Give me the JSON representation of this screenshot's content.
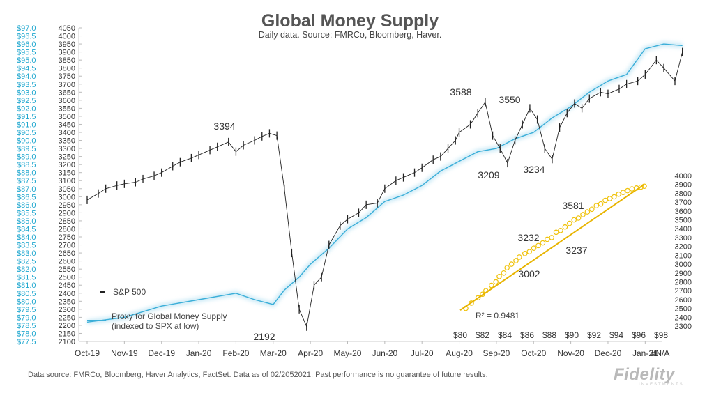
{
  "chart_data": [
    {
      "type": "line",
      "title": "Global Money Supply",
      "subtitle": "Daily data.  Source: FMRCo, Bloomberg, Haver.",
      "x_tick_labels": [
        "Oct-19",
        "Nov-19",
        "Dec-19",
        "Jan-20",
        "Feb-20",
        "Mar-20",
        "Apr-20",
        "May-20",
        "Jun-20",
        "Jul-20",
        "Aug-20",
        "Sep-20",
        "Oct-20",
        "Nov-20",
        "Dec-20",
        "Jan-21"
      ],
      "y_left_ticks": [
        "$97.0",
        "$96.5",
        "$96.0",
        "$95.5",
        "$95.0",
        "$94.5",
        "$94.0",
        "$93.5",
        "$93.0",
        "$92.5",
        "$92.0",
        "$91.5",
        "$91.0",
        "$90.5",
        "$90.0",
        "$89.5",
        "$89.0",
        "$88.5",
        "$88.0",
        "$87.5",
        "$87.0",
        "$86.5",
        "$86.0",
        "$85.5",
        "$85.0",
        "$84.5",
        "$84.0",
        "$83.5",
        "$83.0",
        "$82.5",
        "$82.0",
        "$81.5",
        "$81.0",
        "$80.5",
        "$80.0",
        "$79.5",
        "$79.0",
        "$78.5",
        "$78.0",
        "$77.5"
      ],
      "ylim": [
        2100,
        4050
      ],
      "series": [
        {
          "name": "S&P 500",
          "color": "#222222",
          "x": [
            0,
            0.3,
            0.5,
            0.8,
            1,
            1.3,
            1.5,
            1.8,
            2,
            2.3,
            2.5,
            2.8,
            3,
            3.3,
            3.5,
            3.8,
            4,
            4.2,
            4.5,
            4.7,
            4.9,
            5.1,
            5.3,
            5.5,
            5.7,
            5.9,
            6.1,
            6.3,
            6.5,
            6.8,
            7,
            7.3,
            7.5,
            7.8,
            8,
            8.3,
            8.5,
            8.8,
            9,
            9.3,
            9.5,
            9.7,
            9.9,
            10,
            10.3,
            10.5,
            10.7,
            10.9,
            11.1,
            11.3,
            11.5,
            11.7,
            11.9,
            12.1,
            12.3,
            12.5,
            12.7,
            12.9,
            13.1,
            13.3,
            13.5,
            13.8,
            14,
            14.3,
            14.5,
            14.8,
            15,
            15.3,
            15.5,
            15.8,
            16
          ],
          "y": [
            2980,
            3020,
            3050,
            3070,
            3080,
            3090,
            3110,
            3130,
            3150,
            3190,
            3215,
            3240,
            3260,
            3290,
            3310,
            3340,
            3280,
            3320,
            3350,
            3375,
            3394,
            3380,
            3050,
            2650,
            2300,
            2192,
            2450,
            2500,
            2700,
            2820,
            2860,
            2900,
            2950,
            2960,
            3050,
            3100,
            3120,
            3150,
            3180,
            3230,
            3250,
            3300,
            3350,
            3400,
            3450,
            3520,
            3588,
            3380,
            3300,
            3209,
            3350,
            3450,
            3550,
            3480,
            3300,
            3234,
            3430,
            3520,
            3580,
            3550,
            3610,
            3650,
            3640,
            3670,
            3700,
            3720,
            3760,
            3850,
            3800,
            3720,
            3900
          ]
        },
        {
          "name": "Proxy for Global Money Supply (indexed to SPX at low)",
          "color": "#3aaed8",
          "x": [
            0,
            1,
            2,
            3,
            4,
            4.5,
            5,
            5.3,
            5.7,
            6,
            6.5,
            7,
            7.5,
            8,
            8.5,
            9,
            9.5,
            10,
            10.5,
            11,
            11.5,
            12,
            12.5,
            13,
            13.5,
            14,
            14.5,
            15,
            15.5,
            16
          ],
          "y": [
            2220,
            2250,
            2320,
            2360,
            2400,
            2360,
            2330,
            2420,
            2500,
            2580,
            2680,
            2800,
            2870,
            2970,
            3010,
            3070,
            3160,
            3220,
            3280,
            3300,
            3360,
            3400,
            3490,
            3560,
            3650,
            3720,
            3760,
            3920,
            3950,
            3940
          ]
        }
      ],
      "annotations": [
        "3394",
        "2192",
        "3588",
        "3550",
        "3209",
        "3234"
      ]
    },
    {
      "type": "scatter",
      "x_tick_labels": [
        "$80",
        "$82",
        "$84",
        "$86",
        "$88",
        "$90",
        "$92",
        "$94",
        "$96",
        "$98"
      ],
      "y_ticks": [
        "4000",
        "3900",
        "3800",
        "3700",
        "3600",
        "3500",
        "3400",
        "3300",
        "3200",
        "3100",
        "3000",
        "2900",
        "2800",
        "2700",
        "2600",
        "2500",
        "2400",
        "2300"
      ],
      "xlim": [
        80,
        98
      ],
      "ylim": [
        2300,
        4000
      ],
      "points_x": [
        80.5,
        81,
        81.6,
        82,
        82.3,
        82.8,
        83.2,
        83.5,
        83.9,
        84.2,
        84.6,
        85,
        85.3,
        85.8,
        86.2,
        86.6,
        87,
        87.4,
        87.8,
        88.2,
        88.6,
        89,
        89.4,
        89.8,
        90.2,
        90.6,
        91,
        91.4,
        91.8,
        92.2,
        92.6,
        93,
        93.4,
        93.8,
        94.2,
        94.6,
        95,
        95.4,
        95.8,
        96.2,
        96.5
      ],
      "points_y": [
        2500,
        2560,
        2620,
        2660,
        2700,
        2760,
        2800,
        2860,
        2900,
        2960,
        3000,
        3040,
        3080,
        3120,
        3140,
        3180,
        3210,
        3240,
        3280,
        3300,
        3360,
        3380,
        3420,
        3460,
        3500,
        3520,
        3560,
        3590,
        3620,
        3660,
        3680,
        3720,
        3740,
        3760,
        3790,
        3810,
        3830,
        3850,
        3860,
        3870,
        3880
      ],
      "trendline": {
        "x": [
          80,
          96.5
        ],
        "y": [
          2480,
          3900
        ]
      },
      "r_squared_label": "R² = 0.9481",
      "annotations": [
        "3581",
        "3232",
        "3237",
        "3002"
      ],
      "color": "#f0c20a"
    }
  ],
  "x_extra_label": "#N/A",
  "legend": {
    "sp500": "S&P 500",
    "proxy_line1": "Proxy for Global Money Supply",
    "proxy_line2": "(indexed to SPX at low)"
  },
  "footer": "Data source: FMRCo, Bloomberg, Haver Analytics, FactSet. Data as of 02/2052021. Past performance is no guarantee of future results.",
  "logo": {
    "name": "Fidelity",
    "tag": "INVESTMENTS"
  }
}
